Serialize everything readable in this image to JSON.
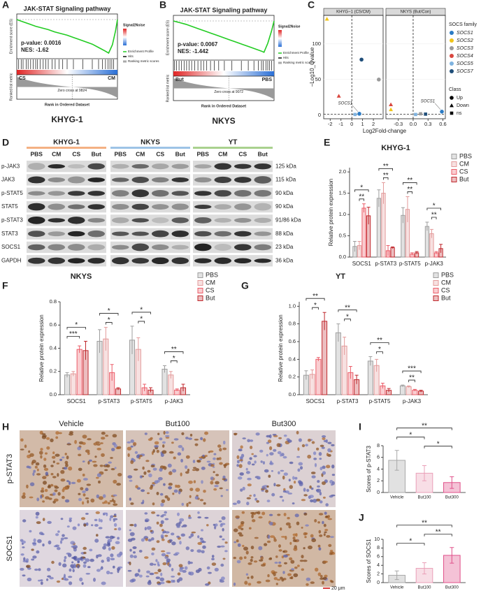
{
  "panel_labels": [
    "A",
    "B",
    "C",
    "D",
    "E",
    "F",
    "G",
    "H",
    "I",
    "J"
  ],
  "chart_data": [
    {
      "type": "gsea",
      "title": "JAK-STAT Signaling pathway",
      "subtitle": "KHYG-1",
      "annotations": [
        "p-value: 0.0016",
        "NES: -1.62"
      ],
      "ylabel": "Enrichment score (ES)",
      "metric_label": "Ranked list metric",
      "xlabel": "Rank in Ordered Dataset",
      "phenotypes": [
        {
          "name": "CS",
          "color": "#e02424"
        },
        {
          "name": "CM",
          "color": "#2a6fd6"
        }
      ],
      "zero_cross": "Zero cross at 9824",
      "colorbar_title": "Signal2Noise",
      "legend": [
        "Enrichment Profile",
        "Hits",
        "Ranking metric scores"
      ],
      "color": "#22cc22",
      "xlim": [
        0,
        16000
      ],
      "ylim": [
        -0.7,
        0.1
      ],
      "x": [
        0,
        1000,
        2000,
        3000,
        4000,
        5000,
        6000,
        7000,
        8000,
        9000,
        10000,
        11000,
        12000,
        13000,
        14000,
        14600,
        15200,
        15700,
        16000
      ],
      "values": [
        0,
        -0.04,
        -0.08,
        -0.12,
        -0.15,
        -0.18,
        -0.22,
        -0.25,
        -0.28,
        -0.32,
        -0.36,
        -0.4,
        -0.44,
        -0.5,
        -0.56,
        -0.6,
        -0.45,
        -0.2,
        0
      ],
      "hits": [
        300,
        700,
        1000,
        1500,
        1800,
        2200,
        2600,
        3000,
        3300,
        3700,
        4200,
        4600,
        5000,
        5600,
        6100,
        6700,
        7300,
        8000,
        9000,
        10500,
        12000,
        13000,
        13600,
        14100,
        14500,
        14800,
        15100,
        15400
      ]
    },
    {
      "type": "gsea",
      "title": "JAK-STAT Signaling pathway",
      "subtitle": "NKYS",
      "annotations": [
        "p-value: 0.0067",
        "NES: -1.442"
      ],
      "ylabel": "Enrichment score (ES)",
      "metric_label": "Ranked list metric",
      "xlabel": "Rank in Ordered Dataset",
      "phenotypes": [
        {
          "name": "But",
          "color": "#e02424"
        },
        {
          "name": "PBS",
          "color": "#2a6fd6"
        }
      ],
      "zero_cross": "Zero cross at 9072",
      "colorbar_title": "Signal2Noise",
      "legend": [
        "Enrichment Profile",
        "Hits",
        "Ranking metric scores"
      ],
      "color": "#22cc22",
      "xlim": [
        0,
        16000
      ],
      "ylim": [
        -0.7,
        0.1
      ],
      "x": [
        0,
        1000,
        2000,
        3000,
        4000,
        5000,
        6000,
        7000,
        8000,
        9000,
        10000,
        11000,
        12000,
        13000,
        14000,
        14400,
        15000,
        15600,
        16000
      ],
      "values": [
        0,
        -0.03,
        -0.06,
        -0.1,
        -0.14,
        -0.18,
        -0.22,
        -0.26,
        -0.3,
        -0.34,
        -0.38,
        -0.42,
        -0.46,
        -0.5,
        -0.54,
        -0.56,
        -0.4,
        -0.18,
        0
      ],
      "hits": [
        200,
        500,
        900,
        1300,
        1700,
        2100,
        2500,
        2900,
        3400,
        3900,
        4400,
        4800,
        5300,
        5900,
        6500,
        7200,
        8100,
        9300,
        10800,
        11900,
        12800,
        13500,
        14000,
        14300,
        14700,
        15000,
        15300,
        15600
      ]
    },
    {
      "type": "volcano",
      "ylabel": "−Log10_Qvalue",
      "xlabel": "Log2Fold-change",
      "ylim": [
        -5,
        140
      ],
      "yticks": [
        0,
        50,
        100
      ],
      "threshold_x": 0,
      "threshold_y": 1.3,
      "legend_title": "SOCS family",
      "series": [
        {
          "name": "SOCS1",
          "color": "#2b7bc4"
        },
        {
          "name": "SOCS2",
          "color": "#f0c419"
        },
        {
          "name": "SOCS3",
          "color": "#9a9a9a"
        },
        {
          "name": "SOCS4",
          "color": "#d9473f"
        },
        {
          "name": "SOCS5",
          "color": "#7fb3e0"
        },
        {
          "name": "SOCS7",
          "color": "#1f4e79"
        }
      ],
      "class_legend": {
        "title": "Class",
        "items": [
          {
            "name": "Up",
            "shape": "circle"
          },
          {
            "name": "Down",
            "shape": "triangle"
          },
          {
            "name": "ns",
            "shape": "square"
          }
        ]
      },
      "facets": [
        {
          "title": "KHYG−1 (CS/CM)",
          "xlim": [
            -2.6,
            2.9
          ],
          "xticks": [
            -2,
            -1,
            0,
            1,
            2
          ],
          "points": [
            {
              "gene": "SOCS2",
              "x": -2.3,
              "y": 135,
              "class": "Down"
            },
            {
              "gene": "SOCS4",
              "x": -1.2,
              "y": 27,
              "class": "Down"
            },
            {
              "gene": "SOCS7",
              "x": 0.9,
              "y": 78,
              "class": "Up"
            },
            {
              "gene": "SOCS3",
              "x": 2.5,
              "y": 50,
              "class": "Up"
            },
            {
              "gene": "SOCS5",
              "x": 0.3,
              "y": 1,
              "class": "ns"
            },
            {
              "gene": "SOCS1",
              "x": 0.7,
              "y": 2,
              "class": "Up",
              "label": "SOCS1"
            }
          ]
        },
        {
          "title": "NKYS (But/Con)",
          "xlim": [
            -0.55,
            0.65
          ],
          "xticks": [
            -0.3,
            {
              "value": 0,
              "label": "0.0"
            },
            0.3,
            0.6
          ],
          "points": [
            {
              "gene": "SOCS4",
              "x": -0.45,
              "y": 15,
              "class": "Down"
            },
            {
              "gene": "SOCS2",
              "x": -0.45,
              "y": 8,
              "class": "Down"
            },
            {
              "gene": "SOCS5",
              "x": 0.05,
              "y": 1,
              "class": "ns"
            },
            {
              "gene": "SOCS3",
              "x": 0.15,
              "y": 2,
              "class": "ns"
            },
            {
              "gene": "SOCS7",
              "x": 0.25,
              "y": 1.5,
              "class": "ns"
            },
            {
              "gene": "SOCS1",
              "x": 0.58,
              "y": 5,
              "class": "Up",
              "label": "SOCS1"
            }
          ]
        }
      ]
    },
    {
      "type": "grouped_bar",
      "title": "KHYG-1",
      "ylabel": "Relative protein expression",
      "categories": [
        "SOCS1",
        "p-STAT3",
        "p-STAT5",
        "p-JAK3"
      ],
      "ylim": [
        0,
        2.1
      ],
      "yticks": [
        {
          "value": 0,
          "label": "0.0"
        },
        0.5,
        {
          "value": 1,
          "label": "1.0"
        },
        1.5,
        {
          "value": 2,
          "label": "2.0"
        }
      ],
      "series": [
        {
          "name": "PBS",
          "color": "#9e9e9e",
          "values": [
            0.25,
            1.38,
            0.98,
            0.72
          ],
          "errors": [
            0.12,
            0.2,
            0.18,
            0.1
          ]
        },
        {
          "name": "CM",
          "color": "#e39a9a",
          "values": [
            0.27,
            1.5,
            1.12,
            0.55
          ],
          "errors": [
            0.1,
            0.25,
            0.3,
            0.1
          ]
        },
        {
          "name": "CS",
          "color": "#ec5c68",
          "values": [
            1.15,
            0.15,
            0.07,
            0.1
          ],
          "errors": [
            0.1,
            0.12,
            0.03,
            0.03
          ]
        },
        {
          "name": "But",
          "color": "#c0282d",
          "values": [
            0.97,
            0.22,
            0.1,
            0.2
          ],
          "errors": [
            0.2,
            0.02,
            0.03,
            0.1
          ]
        }
      ],
      "significance": [
        {
          "category": "SOCS1",
          "pair": [
            "CM",
            "CS"
          ],
          "label": "**"
        },
        {
          "category": "SOCS1",
          "pair": [
            "PBS",
            "But"
          ],
          "label": "*"
        },
        {
          "category": "p-STAT3",
          "pair": [
            "CM",
            "CS"
          ],
          "label": "**"
        },
        {
          "category": "p-STAT3",
          "pair": [
            "PBS",
            "But"
          ],
          "label": "**"
        },
        {
          "category": "p-STAT5",
          "pair": [
            "CM",
            "CS"
          ],
          "label": "**"
        },
        {
          "category": "p-STAT5",
          "pair": [
            "PBS",
            "But"
          ],
          "label": "**"
        },
        {
          "category": "p-JAK3",
          "pair": [
            "CM",
            "CS"
          ],
          "label": "**"
        },
        {
          "category": "p-JAK3",
          "pair": [
            "PBS",
            "But"
          ],
          "label": "*"
        }
      ]
    },
    {
      "type": "grouped_bar",
      "title": "NKYS",
      "ylabel": "Relative protein expression",
      "categories": [
        "SOCS1",
        "p-STAT3",
        "p-STAT5",
        "p-JAK3"
      ],
      "ylim": [
        0,
        0.8
      ],
      "yticks": [
        {
          "value": 0,
          "label": "0.0"
        },
        0.2,
        0.4,
        0.6,
        0.8
      ],
      "series": [
        {
          "name": "PBS",
          "color": "#9e9e9e",
          "values": [
            0.17,
            0.46,
            0.47,
            0.22
          ],
          "errors": [
            0.02,
            0.1,
            0.12,
            0.03
          ]
        },
        {
          "name": "CM",
          "color": "#e39a9a",
          "values": [
            0.18,
            0.48,
            0.39,
            0.17
          ],
          "errors": [
            0.02,
            0.1,
            0.1,
            0.03
          ]
        },
        {
          "name": "CS",
          "color": "#ec5c68",
          "values": [
            0.39,
            0.19,
            0.06,
            0.04
          ],
          "errors": [
            0.03,
            0.07,
            0.03,
            0.01
          ]
        },
        {
          "name": "But",
          "color": "#c0282d",
          "values": [
            0.38,
            0.05,
            0.04,
            0.06
          ],
          "errors": [
            0.08,
            0.01,
            0.02,
            0.03
          ]
        }
      ],
      "significance": [
        {
          "category": "SOCS1",
          "pair": [
            "PBS",
            "CS"
          ],
          "label": "***"
        },
        {
          "category": "SOCS1",
          "pair": [
            "PBS",
            "But"
          ],
          "label": "*"
        },
        {
          "category": "p-STAT3",
          "pair": [
            "CM",
            "CS"
          ],
          "label": "*"
        },
        {
          "category": "p-STAT3",
          "pair": [
            "PBS",
            "But"
          ],
          "label": "*"
        },
        {
          "category": "p-STAT5",
          "pair": [
            "CM",
            "CS"
          ],
          "label": "*"
        },
        {
          "category": "p-STAT5",
          "pair": [
            "PBS",
            "But"
          ],
          "label": "*"
        },
        {
          "category": "p-JAK3",
          "pair": [
            "CM",
            "CS"
          ],
          "label": "*"
        },
        {
          "category": "p-JAK3",
          "pair": [
            "PBS",
            "But"
          ],
          "label": "**"
        }
      ]
    },
    {
      "type": "grouped_bar",
      "title": "YT",
      "ylabel": "Relative protein expression",
      "categories": [
        "SOCS1",
        "p-STAT3",
        "p-STAT5",
        "p-JAK3"
      ],
      "ylim": [
        0,
        1.05
      ],
      "yticks": [
        {
          "value": 0,
          "label": "0.0"
        },
        0.2,
        0.4,
        0.6,
        0.8,
        {
          "value": 1,
          "label": "1.0"
        }
      ],
      "series": [
        {
          "name": "PBS",
          "color": "#9e9e9e",
          "values": [
            0.22,
            0.7,
            0.38,
            0.1
          ],
          "errors": [
            0.05,
            0.1,
            0.05,
            0.01
          ]
        },
        {
          "name": "CM",
          "color": "#e39a9a",
          "values": [
            0.23,
            0.55,
            0.33,
            0.09
          ],
          "errors": [
            0.05,
            0.1,
            0.07,
            0.01
          ]
        },
        {
          "name": "CS",
          "color": "#ec5c68",
          "values": [
            0.4,
            0.25,
            0.1,
            0.05
          ],
          "errors": [
            0.02,
            0.07,
            0.03,
            0.01
          ]
        },
        {
          "name": "But",
          "color": "#c0282d",
          "values": [
            0.83,
            0.17,
            0.05,
            0.04
          ],
          "errors": [
            0.1,
            0.05,
            0.02,
            0.01
          ]
        }
      ],
      "significance": [
        {
          "category": "SOCS1",
          "pair": [
            "CM",
            "CS"
          ],
          "label": "*"
        },
        {
          "category": "SOCS1",
          "pair": [
            "PBS",
            "But"
          ],
          "label": "**"
        },
        {
          "category": "p-STAT3",
          "pair": [
            "CM",
            "CS"
          ],
          "label": "*"
        },
        {
          "category": "p-STAT3",
          "pair": [
            "PBS",
            "But"
          ],
          "label": "**"
        },
        {
          "category": "p-STAT5",
          "pair": [
            "CM",
            "CS"
          ],
          "label": "*"
        },
        {
          "category": "p-STAT5",
          "pair": [
            "PBS",
            "But"
          ],
          "label": "**"
        },
        {
          "category": "p-JAK3",
          "pair": [
            "CM",
            "CS"
          ],
          "label": "**"
        },
        {
          "category": "p-JAK3",
          "pair": [
            "PBS",
            "But"
          ],
          "label": "***"
        }
      ]
    },
    {
      "type": "bar",
      "ylabel": "Scores of p-STAT3",
      "categories": [
        "Vehicle",
        "But100",
        "But300"
      ],
      "colors": [
        "#a8a8a8",
        "#eaa0b8",
        "#e0508a"
      ],
      "values": [
        5.5,
        3.3,
        1.7
      ],
      "errors": [
        1.7,
        1.3,
        1.0
      ],
      "ylim": [
        0,
        8
      ],
      "yticks": [
        0,
        2,
        4,
        6,
        8
      ],
      "significance": [
        {
          "pair": [
            "But100",
            "But300"
          ],
          "label": "*"
        },
        {
          "pair": [
            "Vehicle",
            "But100"
          ],
          "label": "*"
        },
        {
          "pair": [
            "Vehicle",
            "But300"
          ],
          "label": "**"
        }
      ]
    },
    {
      "type": "bar",
      "ylabel": "Scores of SOCS1",
      "categories": [
        "Vehicle",
        "But100",
        "But300"
      ],
      "colors": [
        "#a8a8a8",
        "#eaa0b8",
        "#e0508a"
      ],
      "values": [
        1.7,
        3.3,
        6.3
      ],
      "errors": [
        1.0,
        1.3,
        1.8
      ],
      "ylim": [
        0,
        10
      ],
      "yticks": [
        0,
        2,
        4,
        6,
        8,
        10
      ],
      "significance": [
        {
          "pair": [
            "Vehicle",
            "But100"
          ],
          "label": "*"
        },
        {
          "pair": [
            "But100",
            "But300"
          ],
          "label": "**"
        },
        {
          "pair": [
            "Vehicle",
            "But300"
          ],
          "label": "**"
        }
      ]
    }
  ],
  "blot": {
    "cell_lines": [
      {
        "name": "KHYG-1",
        "color": "#f4b183"
      },
      {
        "name": "NKYS",
        "color": "#9dc3e6"
      },
      {
        "name": "YT",
        "color": "#a9d18e"
      }
    ],
    "lanes": [
      "PBS",
      "CM",
      "CS",
      "But"
    ],
    "rows": [
      {
        "protein": "p-JAK3",
        "size": "125 kDa"
      },
      {
        "protein": "JAK3",
        "size": "115 kDa"
      },
      {
        "protein": "p-STAT5",
        "size": "90 kDa"
      },
      {
        "protein": "STAT5",
        "size": "90 kDa"
      },
      {
        "protein": "p-STAT3",
        "size": "91/86 kDa"
      },
      {
        "protein": "STAT3",
        "size": "88 kDa"
      },
      {
        "protein": "SOCS1",
        "size": "23 kDa"
      },
      {
        "protein": "GAPDH",
        "size": "36 kDa"
      }
    ]
  },
  "ihc": {
    "columns": [
      "Vehicle",
      "But100",
      "But300"
    ],
    "rows": [
      "p-STAT3",
      "SOCS1"
    ],
    "scale_bar": "20 μm"
  }
}
